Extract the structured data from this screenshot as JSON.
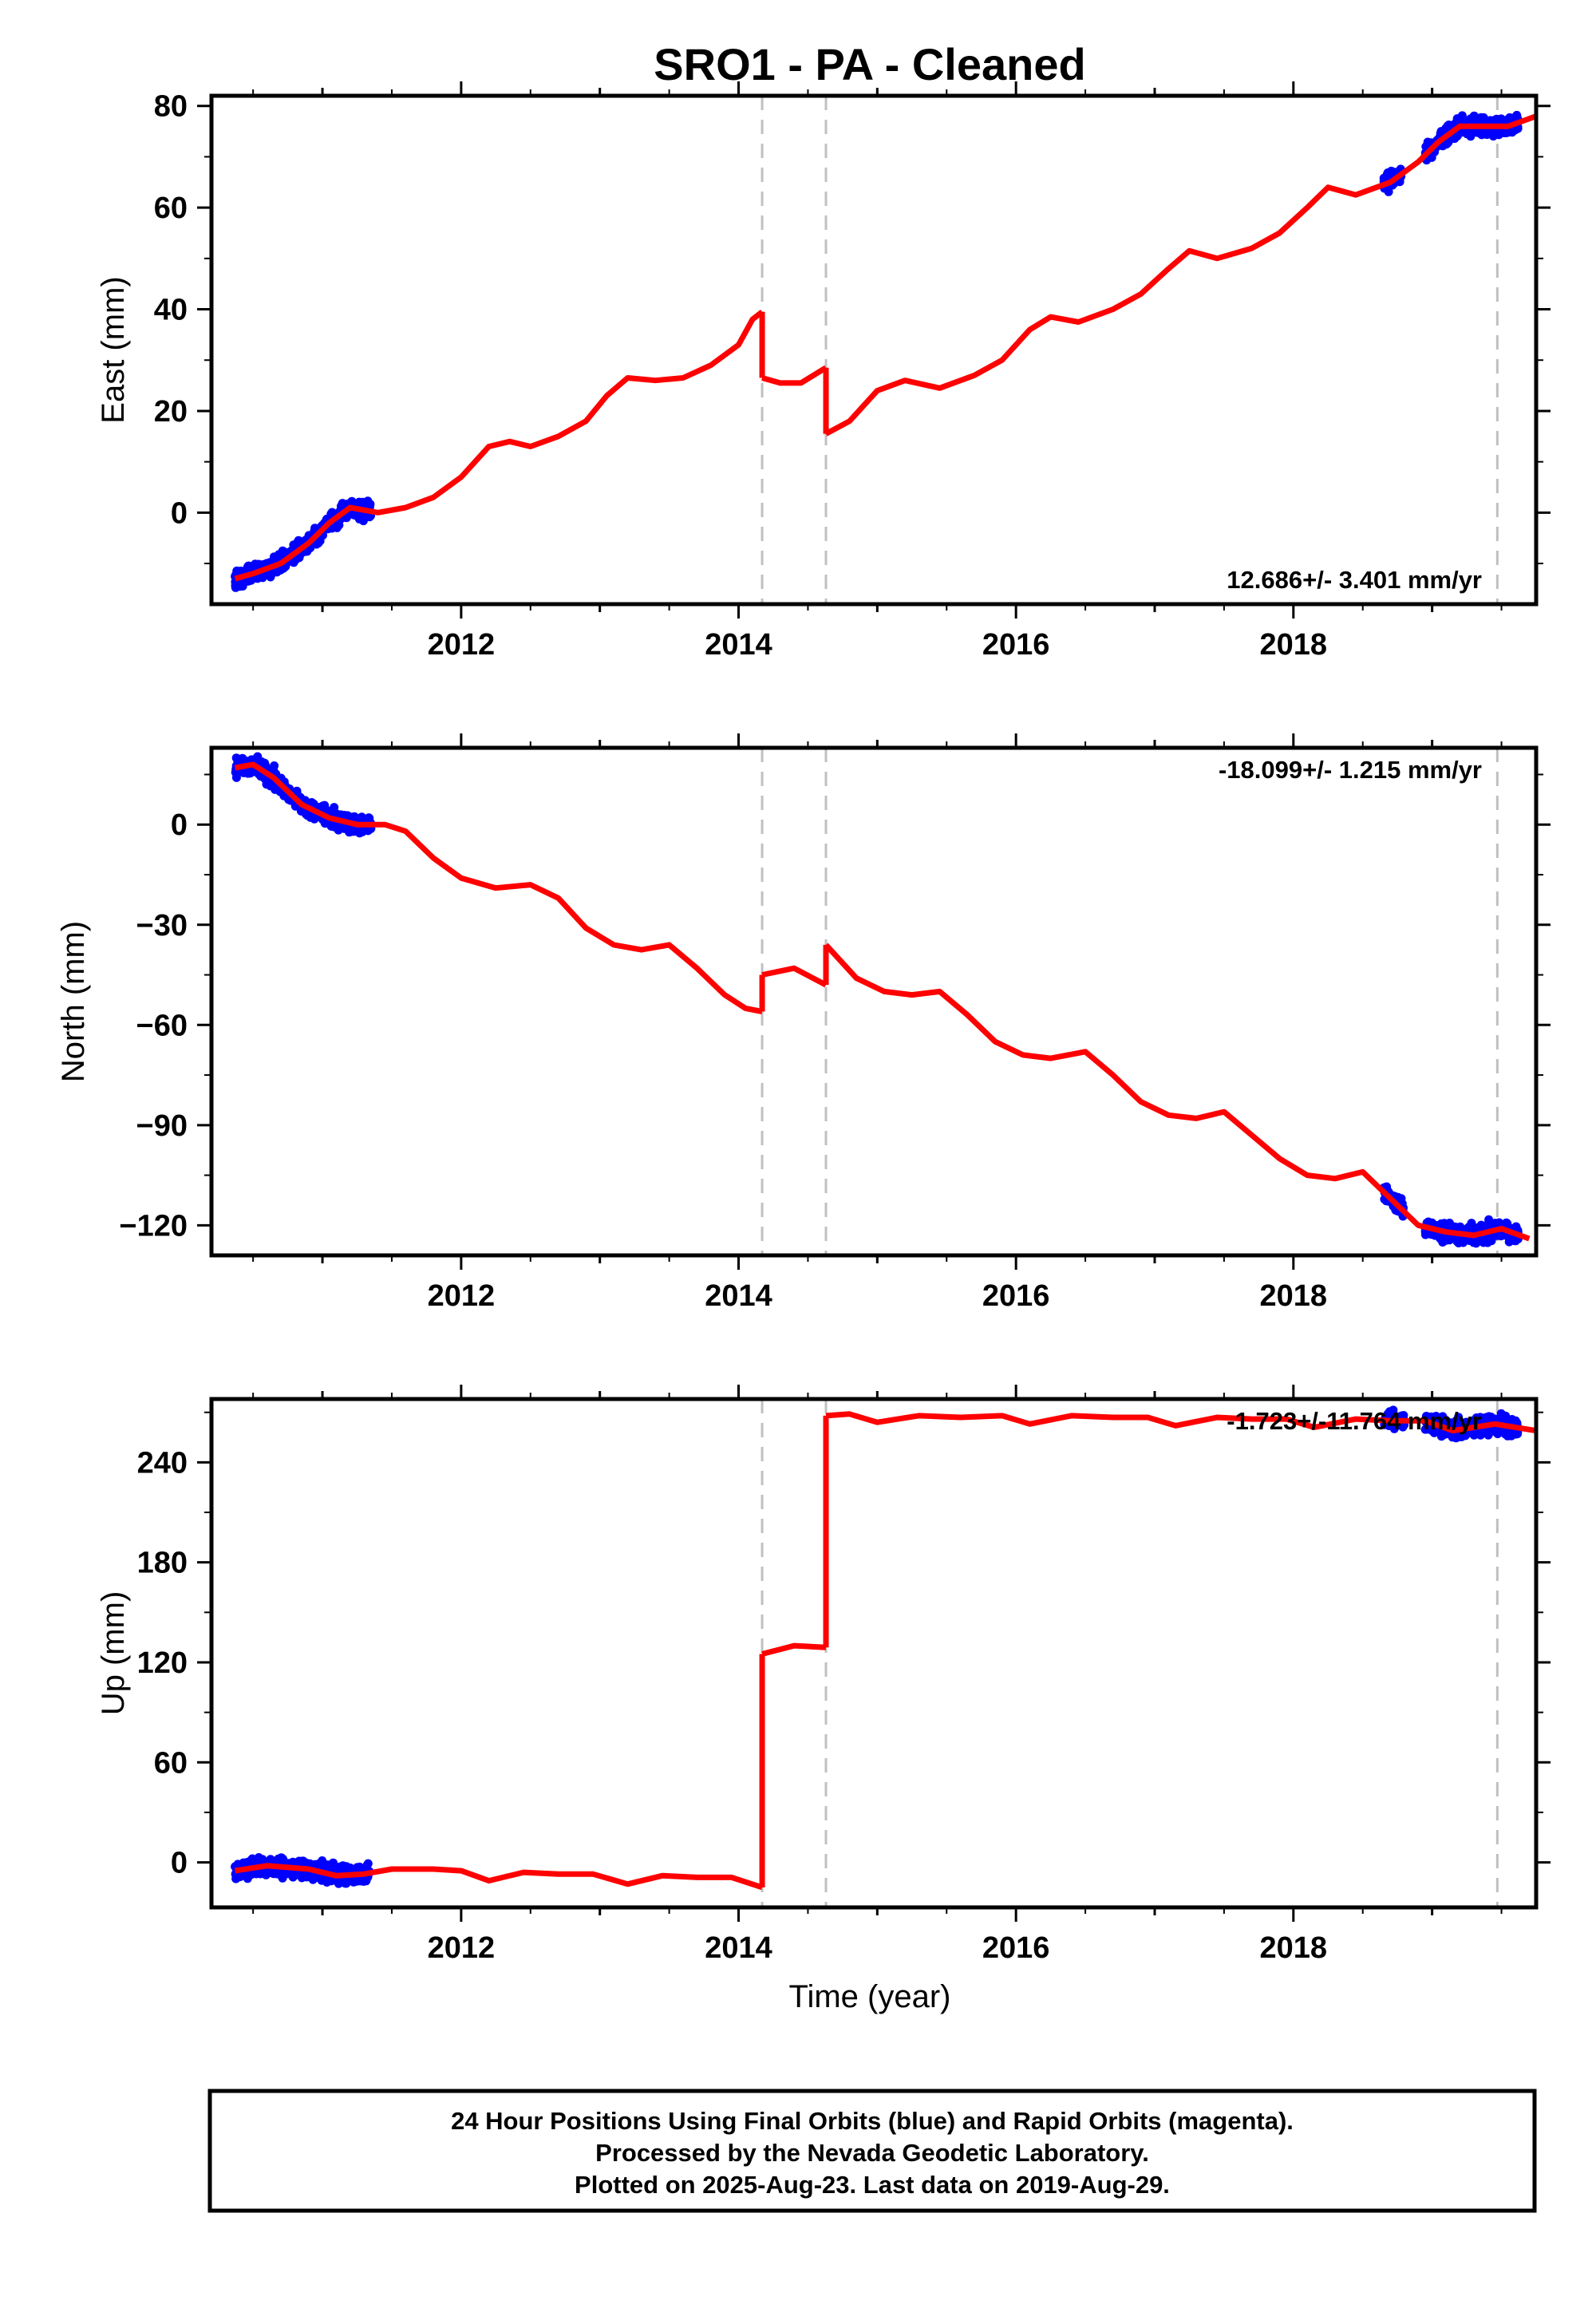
{
  "title": "SRO1  - PA - Cleaned",
  "xlabel": "Time (year)",
  "footer": {
    "lines": [
      "24 Hour Positions Using Final Orbits (blue) and Rapid Orbits (magenta).",
      "Processed by the Nevada Geodetic Laboratory.",
      "Plotted on 2025-Aug-23. Last data on 2019-Aug-29."
    ]
  },
  "colors": {
    "data": "#0000ff",
    "model": "#ff0000",
    "steps": "#c0c0c0",
    "axis": "#000000"
  },
  "chart_data": [
    {
      "type": "scatter",
      "ylabel": "East (mm)",
      "rate": "12.686+/- 3.401 mm/yr",
      "rate_position": "bottom-right",
      "xlim": [
        2010.2,
        2019.75
      ],
      "ylim": [
        -18,
        82
      ],
      "xticks": [
        2012,
        2014,
        2016,
        2018
      ],
      "xtick_labels": [
        "2012",
        "2014",
        "2016",
        "2018"
      ],
      "yticks": [
        0,
        20,
        40,
        60,
        80
      ],
      "ytick_labels": [
        "0",
        "20",
        "40",
        "60",
        "80"
      ],
      "step_epochs": [
        2014.17,
        2014.63,
        2019.47
      ],
      "data_segments": [
        {
          "x0": 2010.37,
          "x1": 2011.35,
          "fill_from": "model"
        },
        {
          "x0": 2018.65,
          "x1": 2018.78,
          "fill_from": "model"
        },
        {
          "x0": 2018.95,
          "x1": 2019.62,
          "fill_from": "model"
        }
      ],
      "series": [
        {
          "name": "",
          "role": "model",
          "segments": [
            [
              [
                2010.37,
                -13
              ],
              [
                2010.5,
                -12
              ],
              [
                2010.7,
                -10
              ],
              [
                2010.9,
                -6
              ],
              [
                2011.05,
                -2
              ],
              [
                2011.2,
                1
              ],
              [
                2011.4,
                0
              ],
              [
                2011.6,
                1
              ],
              [
                2011.8,
                3
              ],
              [
                2012.0,
                7
              ],
              [
                2012.2,
                13
              ],
              [
                2012.35,
                14
              ],
              [
                2012.5,
                13
              ],
              [
                2012.7,
                15
              ],
              [
                2012.9,
                18
              ],
              [
                2013.05,
                23
              ],
              [
                2013.2,
                26.5
              ],
              [
                2013.4,
                26
              ],
              [
                2013.6,
                26.5
              ],
              [
                2013.8,
                29
              ],
              [
                2014.0,
                33
              ],
              [
                2014.1,
                38
              ],
              [
                2014.17,
                39.5
              ]
            ],
            [
              [
                2014.17,
                26.5
              ],
              [
                2014.3,
                25.5
              ],
              [
                2014.45,
                25.5
              ],
              [
                2014.63,
                28.5
              ]
            ],
            [
              [
                2014.63,
                15.5
              ],
              [
                2014.8,
                18
              ],
              [
                2015.0,
                24
              ],
              [
                2015.2,
                26
              ],
              [
                2015.45,
                24.5
              ],
              [
                2015.7,
                27
              ],
              [
                2015.9,
                30
              ],
              [
                2016.1,
                36
              ],
              [
                2016.25,
                38.5
              ],
              [
                2016.45,
                37.5
              ],
              [
                2016.7,
                40
              ],
              [
                2016.9,
                43
              ],
              [
                2017.1,
                48
              ],
              [
                2017.25,
                51.5
              ],
              [
                2017.45,
                50
              ],
              [
                2017.7,
                52
              ],
              [
                2017.9,
                55
              ],
              [
                2018.1,
                60
              ],
              [
                2018.25,
                64
              ],
              [
                2018.45,
                62.5
              ],
              [
                2018.7,
                65
              ],
              [
                2018.9,
                69
              ],
              [
                2019.05,
                73
              ],
              [
                2019.2,
                76
              ],
              [
                2019.4,
                76
              ],
              [
                2019.55,
                76
              ],
              [
                2019.75,
                78
              ]
            ]
          ]
        }
      ]
    },
    {
      "type": "scatter",
      "ylabel": "North (mm)",
      "rate": "-18.099+/- 1.215 mm/yr",
      "rate_position": "top-right",
      "xlim": [
        2010.2,
        2019.75
      ],
      "ylim": [
        -129,
        23
      ],
      "xticks": [
        2012,
        2014,
        2016,
        2018
      ],
      "xtick_labels": [
        "2012",
        "2014",
        "2016",
        "2018"
      ],
      "yticks": [
        0,
        -30,
        -60,
        -90,
        -120
      ],
      "ytick_labels": [
        "0",
        "−30",
        "−60",
        "−90",
        "−120"
      ],
      "step_epochs": [
        2014.17,
        2014.63,
        2019.47
      ],
      "data_segments": [
        {
          "x0": 2010.37,
          "x1": 2011.35,
          "fill_from": "model"
        },
        {
          "x0": 2018.65,
          "x1": 2018.8,
          "fill_from": "model"
        },
        {
          "x0": 2018.95,
          "x1": 2019.62,
          "fill_from": "model"
        }
      ],
      "series": [
        {
          "name": "",
          "role": "model",
          "segments": [
            [
              [
                2010.37,
                17
              ],
              [
                2010.5,
                18
              ],
              [
                2010.65,
                14
              ],
              [
                2010.85,
                6
              ],
              [
                2011.05,
                2
              ],
              [
                2011.25,
                0
              ],
              [
                2011.45,
                0
              ],
              [
                2011.6,
                -2
              ],
              [
                2011.8,
                -10
              ],
              [
                2012.0,
                -16
              ],
              [
                2012.25,
                -19
              ],
              [
                2012.5,
                -18
              ],
              [
                2012.7,
                -22
              ],
              [
                2012.9,
                -31
              ],
              [
                2013.1,
                -36
              ],
              [
                2013.3,
                -37.5
              ],
              [
                2013.5,
                -36
              ],
              [
                2013.7,
                -43
              ],
              [
                2013.9,
                -51
              ],
              [
                2014.05,
                -55
              ],
              [
                2014.17,
                -56
              ]
            ],
            [
              [
                2014.17,
                -45
              ],
              [
                2014.4,
                -43
              ],
              [
                2014.63,
                -48
              ]
            ],
            [
              [
                2014.63,
                -36
              ],
              [
                2014.85,
                -46
              ],
              [
                2015.05,
                -50
              ],
              [
                2015.25,
                -51
              ],
              [
                2015.45,
                -50
              ],
              [
                2015.65,
                -57
              ],
              [
                2015.85,
                -65
              ],
              [
                2016.05,
                -69
              ],
              [
                2016.25,
                -70
              ],
              [
                2016.5,
                -68
              ],
              [
                2016.7,
                -75
              ],
              [
                2016.9,
                -83
              ],
              [
                2017.1,
                -87
              ],
              [
                2017.3,
                -88
              ],
              [
                2017.5,
                -86
              ],
              [
                2017.7,
                -93
              ],
              [
                2017.9,
                -100
              ],
              [
                2018.1,
                -105
              ],
              [
                2018.3,
                -106
              ],
              [
                2018.5,
                -104
              ],
              [
                2018.7,
                -112
              ],
              [
                2018.9,
                -120
              ],
              [
                2019.1,
                -122
              ],
              [
                2019.3,
                -123
              ],
              [
                2019.5,
                -121
              ],
              [
                2019.7,
                -124
              ]
            ]
          ]
        }
      ]
    },
    {
      "type": "scatter",
      "ylabel": "Up (mm)",
      "rate": "-1.723+/-11.764 mm/yr",
      "rate_position": "top-right",
      "xlim": [
        2010.2,
        2019.75
      ],
      "ylim": [
        -27,
        278
      ],
      "xticks": [
        2012,
        2014,
        2016,
        2018
      ],
      "xtick_labels": [
        "2012",
        "2014",
        "2016",
        "2018"
      ],
      "yticks": [
        0,
        60,
        120,
        180,
        240
      ],
      "ytick_labels": [
        "0",
        "60",
        "120",
        "180",
        "240"
      ],
      "step_epochs": [
        2014.17,
        2014.63,
        2019.47
      ],
      "data_segments": [
        {
          "x0": 2010.37,
          "x1": 2011.35,
          "fill_from": "model"
        },
        {
          "x0": 2018.65,
          "x1": 2018.8,
          "fill_from": "model"
        },
        {
          "x0": 2018.95,
          "x1": 2019.62,
          "fill_from": "model"
        }
      ],
      "series": [
        {
          "name": "",
          "role": "model",
          "segments": [
            [
              [
                2010.37,
                -5
              ],
              [
                2010.6,
                -2
              ],
              [
                2010.9,
                -4
              ],
              [
                2011.1,
                -8
              ],
              [
                2011.3,
                -7
              ],
              [
                2011.5,
                -4
              ],
              [
                2011.8,
                -4
              ],
              [
                2012.0,
                -5
              ],
              [
                2012.2,
                -11
              ],
              [
                2012.45,
                -6
              ],
              [
                2012.7,
                -7
              ],
              [
                2012.95,
                -7
              ],
              [
                2013.2,
                -13
              ],
              [
                2013.45,
                -8
              ],
              [
                2013.7,
                -9
              ],
              [
                2013.95,
                -9
              ],
              [
                2014.17,
                -15
              ]
            ],
            [
              [
                2014.17,
                125
              ],
              [
                2014.4,
                130
              ],
              [
                2014.63,
                129
              ]
            ],
            [
              [
                2014.63,
                268
              ],
              [
                2014.8,
                269
              ],
              [
                2015.0,
                264
              ],
              [
                2015.3,
                268
              ],
              [
                2015.6,
                267
              ],
              [
                2015.9,
                268
              ],
              [
                2016.1,
                263
              ],
              [
                2016.4,
                268
              ],
              [
                2016.7,
                267
              ],
              [
                2016.95,
                267
              ],
              [
                2017.15,
                262
              ],
              [
                2017.45,
                267
              ],
              [
                2017.7,
                266
              ],
              [
                2017.95,
                266
              ],
              [
                2018.15,
                261
              ],
              [
                2018.45,
                266
              ],
              [
                2018.7,
                265
              ],
              [
                2018.95,
                265
              ],
              [
                2019.15,
                259
              ],
              [
                2019.45,
                263
              ],
              [
                2019.75,
                259
              ]
            ]
          ]
        }
      ]
    }
  ]
}
